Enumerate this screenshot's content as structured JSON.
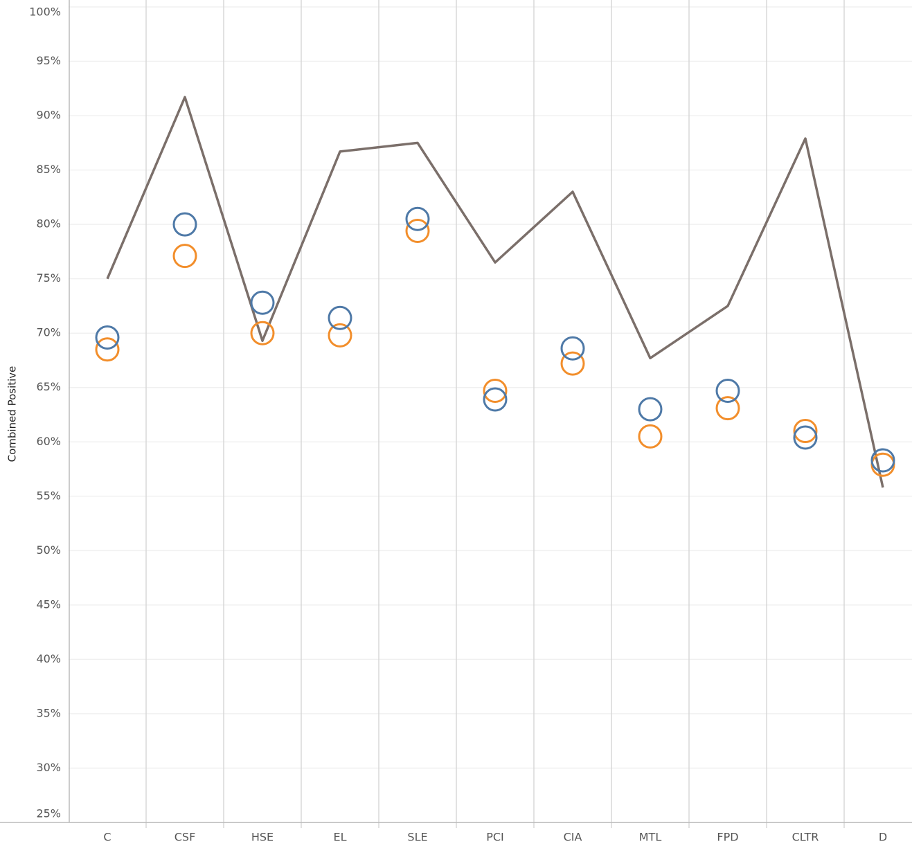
{
  "chart_data": {
    "type": "line",
    "y_label": "Combined Positive",
    "categories": [
      "C",
      "CSF",
      "HSE",
      "EL",
      "SLE",
      "PCI",
      "CIA",
      "MTL",
      "FPD",
      "CLTR",
      "D"
    ],
    "series": [
      {
        "type": "line",
        "color": "#7b6f6a",
        "values": [
          75,
          91.7,
          69.3,
          86.7,
          87.5,
          76.5,
          83,
          67.7,
          72.5,
          87.9,
          55.8
        ]
      },
      {
        "type": "scatter",
        "color": "#f28e2b",
        "values": [
          68.5,
          77.1,
          70,
          69.8,
          79.4,
          64.7,
          67.2,
          60.5,
          63.1,
          61,
          57.9
        ]
      },
      {
        "type": "scatter",
        "color": "#4e79a7",
        "values": [
          69.6,
          80,
          72.8,
          71.4,
          80.5,
          63.9,
          68.6,
          63,
          64.7,
          60.4,
          58.3
        ]
      }
    ],
    "ylim": [
      25,
      100
    ],
    "yticks": [
      {
        "value": 25,
        "label": "25%"
      },
      {
        "value": 30,
        "label": "30%"
      },
      {
        "value": 35,
        "label": "35%"
      },
      {
        "value": 40,
        "label": "40%"
      },
      {
        "value": 45,
        "label": "45%"
      },
      {
        "value": 50,
        "label": "50%"
      },
      {
        "value": 55,
        "label": "55%"
      },
      {
        "value": 60,
        "label": "60%"
      },
      {
        "value": 65,
        "label": "65%"
      },
      {
        "value": 70,
        "label": "70%"
      },
      {
        "value": 75,
        "label": "75%"
      },
      {
        "value": 80,
        "label": "80%"
      },
      {
        "value": 85,
        "label": "85%"
      },
      {
        "value": 90,
        "label": "90%"
      },
      {
        "value": 95,
        "label": "95%"
      },
      {
        "value": 100,
        "label": "100%"
      }
    ],
    "grid": true
  }
}
